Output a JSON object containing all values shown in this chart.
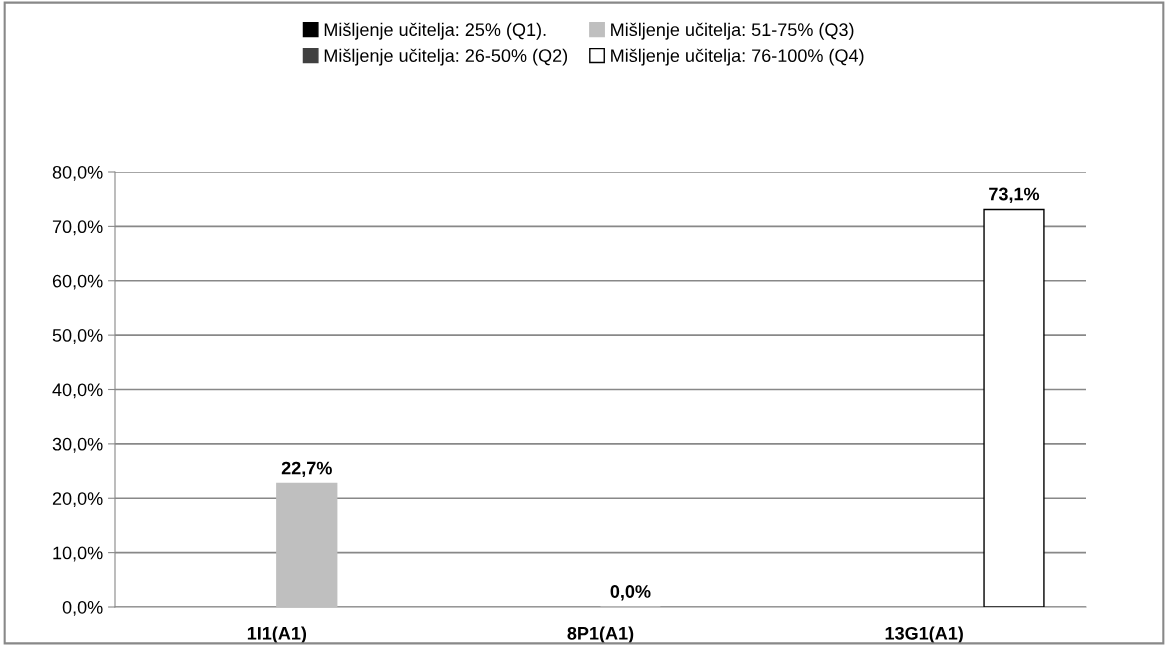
{
  "chart_data": {
    "type": "bar",
    "categories": [
      "1I1(A1)",
      "8P1(A1)",
      "13G1(A1)"
    ],
    "series": [
      {
        "name": "Mišljenje učitelja: 25% (Q1).",
        "color": "#000000",
        "values": [
          null,
          null,
          null
        ],
        "value_labels": [
          null,
          null,
          null
        ]
      },
      {
        "name": "Mišljenje učitelja: 26-50% (Q2)",
        "color": "#404040",
        "values": [
          null,
          null,
          null
        ],
        "value_labels": [
          null,
          null,
          null
        ]
      },
      {
        "name": "Mišljenje učitelja: 51-75% (Q3)",
        "color": "#bfbfbf",
        "values": [
          22.7,
          0,
          null
        ],
        "value_labels": [
          "22,7%",
          "0,0%",
          null
        ]
      },
      {
        "name": "Mišljenje učitelja: 76-100% (Q4)",
        "color": "#ffffff",
        "values": [
          null,
          null,
          73.1
        ],
        "value_labels": [
          null,
          null,
          "73,1%"
        ]
      }
    ],
    "ylim": [
      0,
      80
    ],
    "yticks": [
      {
        "value": 0,
        "label": "0,0%"
      },
      {
        "value": 10,
        "label": "10,0%"
      },
      {
        "value": 20,
        "label": "20,0%"
      },
      {
        "value": 30,
        "label": "30,0%"
      },
      {
        "value": 40,
        "label": "40,0%"
      },
      {
        "value": 50,
        "label": "50,0%"
      },
      {
        "value": 60,
        "label": "60,0%"
      },
      {
        "value": 70,
        "label": "70,0%"
      },
      {
        "value": 80,
        "label": "80,0%"
      }
    ],
    "grid": "y",
    "legend": "top"
  }
}
